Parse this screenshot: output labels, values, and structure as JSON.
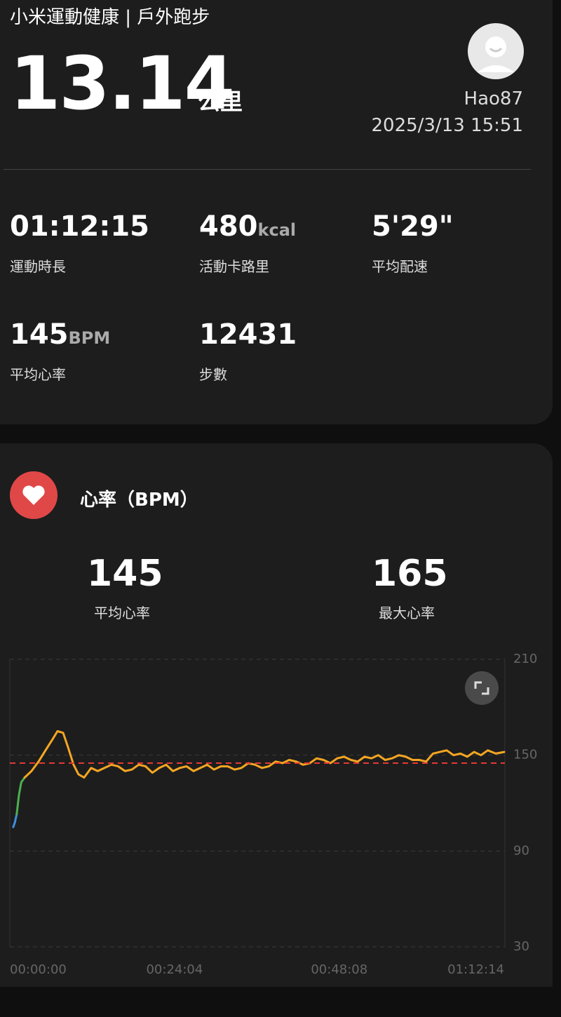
{
  "header": {
    "title": "小米運動健康 | 戶外跑步",
    "distance": "13.14",
    "distance_unit": "公里",
    "user": "Hao87",
    "datetime": "2025/3/13 15:51"
  },
  "stats": [
    {
      "value": "01:12:15",
      "label": "運動時長"
    },
    {
      "value": 480,
      "unit": "kcal",
      "label": "活動卡路里"
    },
    {
      "value": "5'29\"",
      "label": "平均配速"
    },
    {
      "value": 145,
      "unit": "BPM",
      "label": "平均心率"
    },
    {
      "value": 12431,
      "label": "步數"
    }
  ],
  "heart": {
    "title": "心率（BPM）",
    "avg": 145,
    "avg_label": "平均心率",
    "max": 165,
    "max_label": "最大心率"
  },
  "chart_data": {
    "type": "line",
    "xlim": [
      0,
      4334
    ],
    "xticks": [
      {
        "value": 0,
        "label": "00:00:00"
      },
      {
        "value": 1444,
        "label": "00:24:04"
      },
      {
        "value": 2888,
        "label": "00:48:08"
      },
      {
        "value": 4334,
        "label": "01:12:14"
      }
    ],
    "ylim": [
      30,
      210
    ],
    "yticks": [
      30,
      90,
      150,
      210
    ],
    "grid": true,
    "avg_line_color": "#e53935",
    "series": [
      {
        "color": "#3d8fe0",
        "x": [
          30,
          45,
          60
        ],
        "values": [
          105,
          108,
          113
        ]
      },
      {
        "color": "#4caf50",
        "x": [
          60,
          80,
          100,
          130
        ],
        "values": [
          113,
          125,
          133,
          136
        ]
      },
      {
        "color": "#f5a623",
        "x": [
          130,
          190,
          252,
          313,
          375,
          418,
          467,
          510,
          559,
          602,
          651,
          713,
          770,
          830,
          890,
          950,
          1010,
          1070,
          1130,
          1190,
          1250,
          1310,
          1370,
          1430,
          1490,
          1550,
          1610,
          1670,
          1730,
          1790,
          1850,
          1910,
          1970,
          2030,
          2090,
          2150,
          2210,
          2270,
          2330,
          2390,
          2450,
          2510,
          2570,
          2630,
          2690,
          2750,
          2810,
          2870,
          2930,
          2990,
          3050,
          3110,
          3170,
          3230,
          3290,
          3350,
          3410,
          3470,
          3530,
          3590,
          3650,
          3710,
          3770,
          3830,
          3890,
          3950,
          4010,
          4070,
          4130,
          4190,
          4260,
          4334
        ],
        "values": [
          136,
          140,
          146,
          153,
          160,
          165,
          164,
          155,
          144,
          138,
          136,
          142,
          140,
          142,
          144,
          143,
          140,
          141,
          144,
          143,
          139,
          142,
          144,
          140,
          142,
          143,
          140,
          142,
          144,
          141,
          143,
          143,
          141,
          142,
          145,
          144,
          142,
          143,
          146,
          145,
          147,
          146,
          144,
          145,
          148,
          147,
          145,
          148,
          149,
          147,
          146,
          149,
          148,
          150,
          147,
          148,
          150,
          149,
          147,
          147,
          146,
          151,
          152,
          153,
          150,
          151,
          149,
          152,
          150,
          153,
          151,
          152
        ]
      }
    ]
  }
}
